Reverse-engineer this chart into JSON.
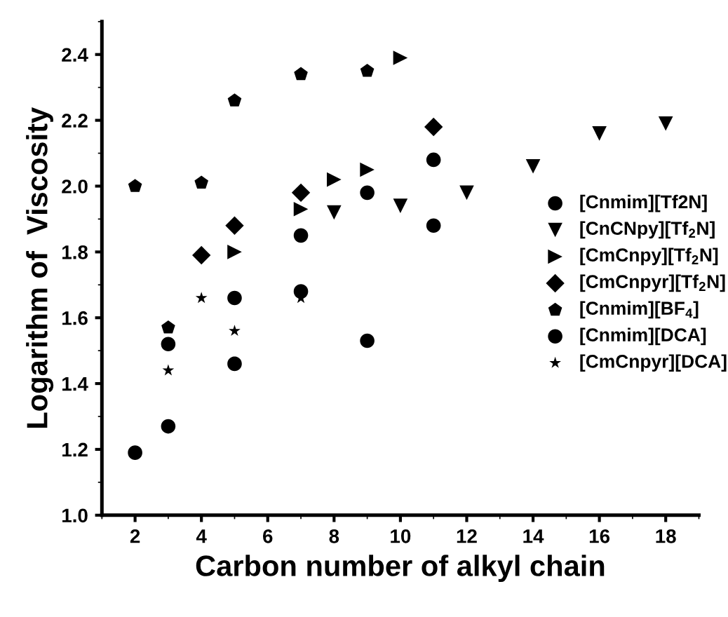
{
  "chart_data": {
    "type": "scatter",
    "xlabel": "Carbon number of alkyl chain",
    "ylabel": "Logarithm of  Viscosity",
    "xlim": [
      1,
      19
    ],
    "xticks": [
      2,
      4,
      6,
      8,
      10,
      12,
      14,
      16,
      18
    ],
    "ylim": [
      1.0,
      2.5
    ],
    "yticks": [
      {
        "value": 1.0,
        "label": "1.0"
      },
      {
        "value": 1.2,
        "label": "1.2"
      },
      {
        "value": 1.4,
        "label": "1.4"
      },
      {
        "value": 1.6,
        "label": "1.6"
      },
      {
        "value": 1.8,
        "label": "1.8"
      },
      {
        "value": 2.0,
        "label": "2.0"
      },
      {
        "value": 2.2,
        "label": "2.2"
      },
      {
        "value": 2.4,
        "label": "2.4"
      }
    ],
    "grid": false,
    "legend": "right",
    "series": [
      {
        "name": "[Cnmim][Tf2N]",
        "color": "#000000",
        "marker": "circle",
        "x": [
          3,
          5,
          7,
          9,
          11
        ],
        "values": [
          1.52,
          1.66,
          1.85,
          1.98,
          2.08
        ]
      },
      {
        "name": "[CnCNpy][Tf$_{2}$N]",
        "color": "#000000",
        "marker": "triangle_down",
        "x": [
          8,
          10,
          12,
          14,
          16,
          18
        ],
        "values": [
          1.92,
          1.94,
          1.98,
          2.06,
          2.16,
          2.19
        ]
      },
      {
        "name": "[CmCnpy][Tf$_{2}$N]",
        "color": "#000000",
        "marker": "triangle_right",
        "x": [
          5,
          7,
          8,
          9,
          10
        ],
        "values": [
          1.8,
          1.93,
          2.02,
          2.05,
          2.39
        ]
      },
      {
        "name": "[CmCnpyr][Tf$_{2}$N]",
        "color": "#000000",
        "marker": "diamond",
        "x": [
          4,
          5,
          7,
          11
        ],
        "values": [
          1.79,
          1.88,
          1.98,
          2.18
        ]
      },
      {
        "name": "[Cnmim][BF$_{4}$]",
        "color": "#000000",
        "x": [
          2,
          3,
          4,
          5,
          7,
          9
        ],
        "values": [
          2.0,
          1.57,
          2.01,
          2.26,
          2.34,
          2.35
        ]
      },
      {
        "name": "[Cnmim][DCA]",
        "color": "#000000",
        "marker": "circle",
        "x": [
          2,
          3,
          5,
          7,
          9,
          11
        ],
        "values": [
          1.19,
          1.27,
          1.46,
          1.68,
          1.53,
          1.88
        ]
      },
      {
        "name": "[CmCnpyr][DCA]",
        "color": "#000000",
        "marker": "star",
        "x": [
          3,
          4,
          5,
          7
        ],
        "values": [
          1.44,
          1.66,
          1.56,
          1.66
        ]
      }
    ]
  }
}
